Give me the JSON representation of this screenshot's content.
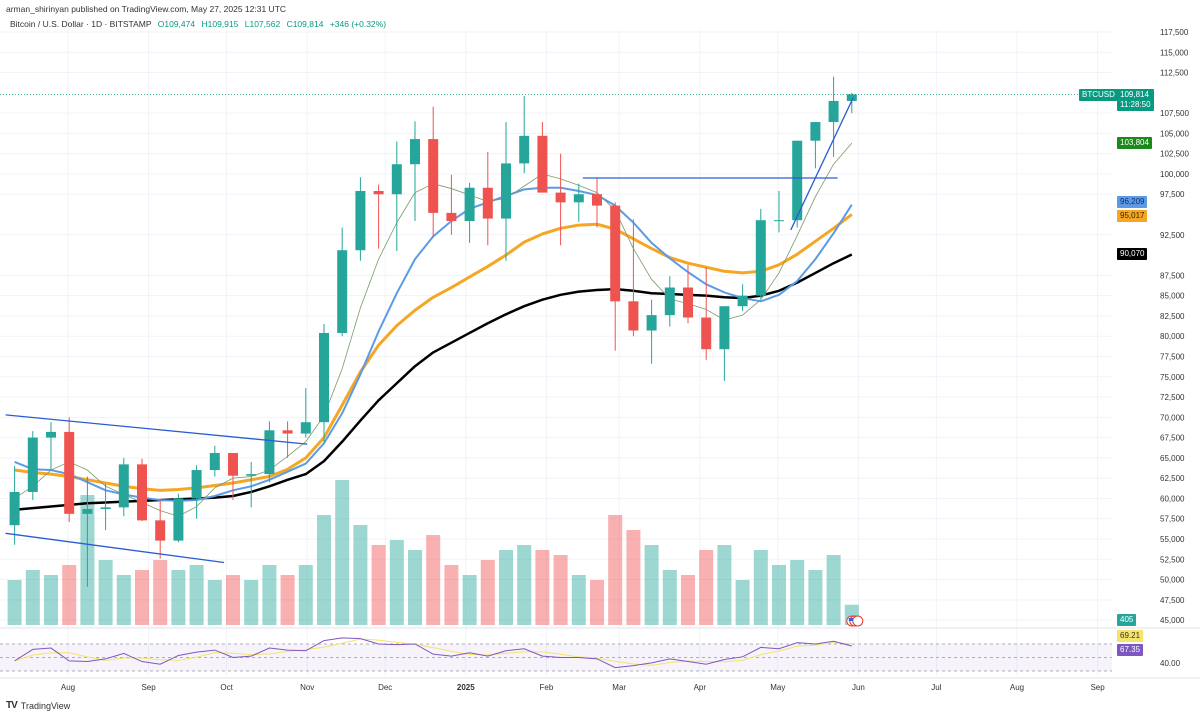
{
  "header": {
    "published": "arman_shirinyan published on TradingView.com, May 27, 2025 12:31 UTC",
    "symbol": "Bitcoin / U.S. Dollar · 1D · BITSTAMP",
    "open": "O109,474",
    "high": "H109,915",
    "low": "L107,562",
    "close": "C109,814",
    "change": "+346 (+0.32%)"
  },
  "footer": {
    "logo_text": "TradingView"
  },
  "badges": {
    "ticker": "BTCUSD",
    "last_price": "109,814",
    "countdown": "11:28:50",
    "ma20": "103,804",
    "ma50": "96,209",
    "ma100": "95,017",
    "ma200": "90,070",
    "volume": "405",
    "rsi_ma": "69.21",
    "rsi": "67.35",
    "rsi_level": "40.00"
  },
  "colors": {
    "up": "#26a69a",
    "down": "#ef5350",
    "ma20": "#7a9a6a",
    "ma50": "#5b9be6",
    "ma100": "#f5a623",
    "ma200": "#000000",
    "trendline": "#2a5dd1",
    "rsi": "#7e57c2",
    "rsi_ma": "#f5e36a",
    "last_price": "#089981"
  },
  "chart_data": {
    "type": "candlestick",
    "title": "Bitcoin / U.S. Dollar · 1D · BITSTAMP",
    "price_ticks": [
      "117,500",
      "115,000",
      "112,500",
      "107,500",
      "105,000",
      "102,500",
      "100,000",
      "97,500",
      "92,500",
      "87,500",
      "85,000",
      "82,500",
      "80,000",
      "77,500",
      "75,000",
      "72,500",
      "70,000",
      "67,500",
      "65,000",
      "62,500",
      "60,000",
      "57,500",
      "55,000",
      "52,500",
      "50,000",
      "47,500",
      "45,000"
    ],
    "time_ticks": [
      {
        "date": "2024-08-01",
        "label": "Aug"
      },
      {
        "date": "2024-09-01",
        "label": "Sep"
      },
      {
        "date": "2024-10-01",
        "label": "Oct"
      },
      {
        "date": "2024-11-01",
        "label": "Nov"
      },
      {
        "date": "2024-12-01",
        "label": "Dec"
      },
      {
        "date": "2025-01-01",
        "label": "2025"
      },
      {
        "date": "2025-02-01",
        "label": "Feb"
      },
      {
        "date": "2025-03-01",
        "label": "Mar"
      },
      {
        "date": "2025-04-01",
        "label": "Apr"
      },
      {
        "date": "2025-05-01",
        "label": "May"
      },
      {
        "date": "2025-06-01",
        "label": "Jun"
      },
      {
        "date": "2025-07-01",
        "label": "Jul"
      },
      {
        "date": "2025-08-01",
        "label": "Aug"
      },
      {
        "date": "2025-09-01",
        "label": "Sep"
      }
    ],
    "ylim": [
      45000,
      117500
    ],
    "last_price": 109814,
    "dates": [
      "2024-07-08",
      "2024-07-15",
      "2024-07-22",
      "2024-07-29",
      "2024-08-05",
      "2024-08-12",
      "2024-08-19",
      "2024-08-26",
      "2024-09-02",
      "2024-09-09",
      "2024-09-16",
      "2024-09-23",
      "2024-09-30",
      "2024-10-07",
      "2024-10-14",
      "2024-10-21",
      "2024-10-28",
      "2024-11-04",
      "2024-11-11",
      "2024-11-18",
      "2024-11-25",
      "2024-12-02",
      "2024-12-09",
      "2024-12-16",
      "2024-12-23",
      "2024-12-30",
      "2025-01-06",
      "2025-01-13",
      "2025-01-20",
      "2025-01-27",
      "2025-02-03",
      "2025-02-10",
      "2025-02-17",
      "2025-02-24",
      "2025-03-03",
      "2025-03-10",
      "2025-03-17",
      "2025-03-24",
      "2025-03-31",
      "2025-04-07",
      "2025-04-14",
      "2025-04-21",
      "2025-04-28",
      "2025-05-05",
      "2025-05-12",
      "2025-05-19",
      "2025-05-26"
    ],
    "ohlc": [
      [
        56700,
        64000,
        54300,
        60800
      ],
      [
        60800,
        68300,
        59800,
        67500
      ],
      [
        67500,
        69400,
        63400,
        68200
      ],
      [
        68200,
        70000,
        57100,
        58100
      ],
      [
        58100,
        62700,
        49100,
        58700
      ],
      [
        58700,
        61800,
        56100,
        58900
      ],
      [
        58900,
        65000,
        57800,
        64200
      ],
      [
        64200,
        64900,
        57200,
        57300
      ],
      [
        57300,
        59800,
        52600,
        54800
      ],
      [
        54800,
        60600,
        54600,
        60000
      ],
      [
        60000,
        64100,
        57500,
        63500
      ],
      [
        63500,
        66500,
        62700,
        65600
      ],
      [
        65600,
        65600,
        59800,
        62800
      ],
      [
        62800,
        64500,
        58900,
        63000
      ],
      [
        63000,
        69500,
        62000,
        68400
      ],
      [
        68400,
        69500,
        65000,
        68000
      ],
      [
        68000,
        73600,
        67500,
        69400
      ],
      [
        69400,
        81500,
        66800,
        80400
      ],
      [
        80400,
        93400,
        80000,
        90600
      ],
      [
        90600,
        99600,
        89300,
        97900
      ],
      [
        97900,
        98700,
        90800,
        97500
      ],
      [
        97500,
        104000,
        90500,
        101200
      ],
      [
        101200,
        106500,
        94200,
        104300
      ],
      [
        104300,
        108300,
        92200,
        95200
      ],
      [
        95200,
        99900,
        92500,
        94200
      ],
      [
        94200,
        98900,
        91500,
        98300
      ],
      [
        98300,
        102700,
        91200,
        94500
      ],
      [
        94500,
        106400,
        89300,
        101300
      ],
      [
        101300,
        109600,
        100100,
        104700
      ],
      [
        104700,
        106400,
        97800,
        97700
      ],
      [
        97700,
        102500,
        91200,
        96500
      ],
      [
        96500,
        98800,
        94100,
        97500
      ],
      [
        97500,
        99500,
        93400,
        96100
      ],
      [
        96100,
        96500,
        78200,
        84300
      ],
      [
        84300,
        94400,
        80000,
        80700
      ],
      [
        80700,
        84500,
        76600,
        82600
      ],
      [
        82600,
        87400,
        81200,
        86000
      ],
      [
        86000,
        88800,
        81600,
        82300
      ],
      [
        82300,
        88500,
        77100,
        78400
      ],
      [
        78400,
        83600,
        74500,
        83700
      ],
      [
        83700,
        86400,
        83100,
        85000
      ],
      [
        85000,
        95700,
        84600,
        94300
      ],
      [
        94300,
        97900,
        92800,
        94300
      ],
      [
        94300,
        104100,
        93400,
        104100
      ],
      [
        104100,
        105800,
        100700,
        106400
      ],
      [
        106400,
        112000,
        102100,
        109000
      ],
      [
        109000,
        110000,
        107500,
        109814
      ]
    ],
    "volume": [
      900,
      1100,
      1000,
      1200,
      2600,
      1300,
      1000,
      1100,
      1300,
      1100,
      1200,
      900,
      1000,
      900,
      1200,
      1000,
      1200,
      2200,
      2900,
      2000,
      1600,
      1700,
      1500,
      1800,
      1200,
      1000,
      1300,
      1500,
      1600,
      1500,
      1400,
      1000,
      900,
      2200,
      1900,
      1600,
      1100,
      1000,
      1500,
      1600,
      900,
      1500,
      1200,
      1300,
      1100,
      1400,
      405
    ],
    "rsi": [
      45,
      62,
      64,
      45,
      44,
      48,
      56,
      44,
      40,
      53,
      58,
      61,
      50,
      52,
      64,
      61,
      60,
      75,
      79,
      78,
      70,
      69,
      70,
      55,
      52,
      57,
      52,
      60,
      63,
      52,
      50,
      50,
      48,
      35,
      38,
      42,
      48,
      44,
      40,
      47,
      51,
      65,
      63,
      72,
      70,
      74,
      67
    ],
    "series": [
      {
        "name": "MA 20",
        "key": "ma20",
        "values": [
          60000,
          61500,
          63500,
          64500,
          63500,
          61500,
          60500,
          59500,
          58500,
          57800,
          59000,
          61300,
          62500,
          62700,
          63500,
          65200,
          67000,
          70200,
          76000,
          83500,
          89500,
          94000,
          97700,
          98800,
          98200,
          97400,
          96600,
          97000,
          98500,
          100000,
          99400,
          98600,
          97700,
          95500,
          90800,
          87000,
          84600,
          84000,
          83300,
          82000,
          82600,
          84500,
          87800,
          92400,
          97200,
          101200,
          103804
        ]
      },
      {
        "name": "MA 50",
        "key": "ma50",
        "values": [
          64500,
          63600,
          63500,
          63000,
          62000,
          61000,
          60500,
          60100,
          59800,
          59700,
          59800,
          60300,
          61000,
          61500,
          62300,
          63300,
          64300,
          66800,
          70500,
          75300,
          80600,
          85300,
          89500,
          92300,
          94200,
          95700,
          96500,
          97300,
          98100,
          98300,
          98300,
          97900,
          97400,
          96100,
          94000,
          91500,
          89600,
          87900,
          86400,
          85400,
          84700,
          84300,
          85100,
          86800,
          89500,
          92700,
          96209
        ]
      },
      {
        "name": "MA 100",
        "key": "ma100",
        "values": [
          63500,
          63200,
          63000,
          62700,
          62300,
          61900,
          61500,
          61200,
          61000,
          61100,
          61300,
          61600,
          61900,
          62300,
          62700,
          63600,
          65000,
          67500,
          71500,
          75600,
          78900,
          81300,
          83200,
          84800,
          86000,
          87300,
          88600,
          90000,
          91600,
          92600,
          93300,
          93700,
          93800,
          93200,
          92000,
          90800,
          89700,
          89000,
          88500,
          88000,
          87800,
          88000,
          88800,
          90100,
          91700,
          93300,
          95017
        ]
      },
      {
        "name": "MA 200",
        "key": "ma200",
        "values": [
          58600,
          58800,
          59000,
          59200,
          59400,
          59500,
          59600,
          59700,
          59800,
          59900,
          60000,
          60100,
          60300,
          60800,
          61500,
          62300,
          63000,
          64600,
          67000,
          69600,
          72100,
          74200,
          76300,
          78000,
          79200,
          80400,
          81600,
          82700,
          83700,
          84500,
          85100,
          85500,
          85700,
          85800,
          85600,
          85300,
          85200,
          85100,
          85000,
          84800,
          84700,
          85000,
          85600,
          86600,
          87800,
          89000,
          90070
        ]
      }
    ],
    "trendlines": [
      {
        "name": "channel-upper",
        "from": [
          "2024-07-08",
          70300
        ],
        "to": [
          "2024-11-01",
          66700
        ]
      },
      {
        "name": "channel-lower",
        "from": [
          "2024-07-08",
          55700
        ],
        "to": [
          "2024-09-30",
          52100
        ]
      },
      {
        "name": "resistance-horizontal",
        "from": [
          "2025-02-15",
          99500
        ],
        "to": [
          "2025-05-24",
          99500
        ]
      },
      {
        "name": "rising-support",
        "from": [
          "2025-05-06",
          93100
        ],
        "to": [
          "2025-05-30",
          109400
        ]
      }
    ]
  }
}
